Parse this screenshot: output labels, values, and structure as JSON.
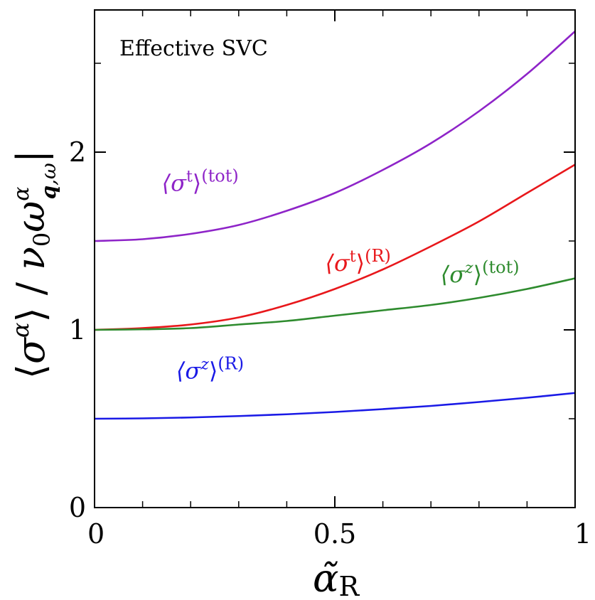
{
  "chart_data": {
    "type": "line",
    "title": "Effective SVC",
    "xlabel": "α̃R",
    "ylabel": "⟨σα⟩ / ν0 ω^α q,ω",
    "xlim": [
      0,
      1
    ],
    "ylim": [
      0,
      2.8
    ],
    "xticks": [
      0,
      0.5,
      1
    ],
    "xtick_labels": [
      "0",
      "0.5",
      "1"
    ],
    "xticks_minor": [
      0.1,
      0.2,
      0.3,
      0.4,
      0.6,
      0.7,
      0.8,
      0.9
    ],
    "yticks": [
      0,
      1,
      2
    ],
    "ytick_labels": [
      "0",
      "1",
      "2"
    ],
    "yticks_minor": [
      0.5,
      1.5,
      2.5
    ],
    "grid": false,
    "x": [
      0,
      0.1,
      0.2,
      0.3,
      0.4,
      0.5,
      0.6,
      0.7,
      0.8,
      0.9,
      1.0
    ],
    "series": [
      {
        "name": "⟨σt⟩(tot)",
        "base": "⟨σ",
        "sup1": "t",
        "close": "⟩",
        "sup2": "(tot)",
        "color": "#8e24c8",
        "values": [
          1.5,
          1.51,
          1.54,
          1.59,
          1.67,
          1.77,
          1.9,
          2.05,
          2.23,
          2.44,
          2.68
        ]
      },
      {
        "name": "⟨σt⟩(R)",
        "base": "⟨σ",
        "sup1": "t",
        "close": "⟩",
        "sup2": "(R)",
        "color": "#e8171b",
        "values": [
          1.0,
          1.01,
          1.03,
          1.07,
          1.14,
          1.23,
          1.34,
          1.47,
          1.61,
          1.77,
          1.93
        ]
      },
      {
        "name": "⟨σz⟩(tot)",
        "base": "⟨σ",
        "sup1": "z",
        "close": "⟩",
        "sup2": "(tot)",
        "color": "#2e8b2e",
        "values": [
          1.0,
          1.003,
          1.01,
          1.03,
          1.05,
          1.08,
          1.11,
          1.14,
          1.18,
          1.23,
          1.29
        ]
      },
      {
        "name": "⟨σz⟩(R)",
        "base": "⟨σ",
        "sup1": "z",
        "close": "⟩",
        "sup2": "(R)",
        "color": "#1a1ae6",
        "values": [
          0.5,
          0.502,
          0.507,
          0.515,
          0.525,
          0.538,
          0.554,
          0.572,
          0.594,
          0.618,
          0.645
        ]
      }
    ]
  }
}
